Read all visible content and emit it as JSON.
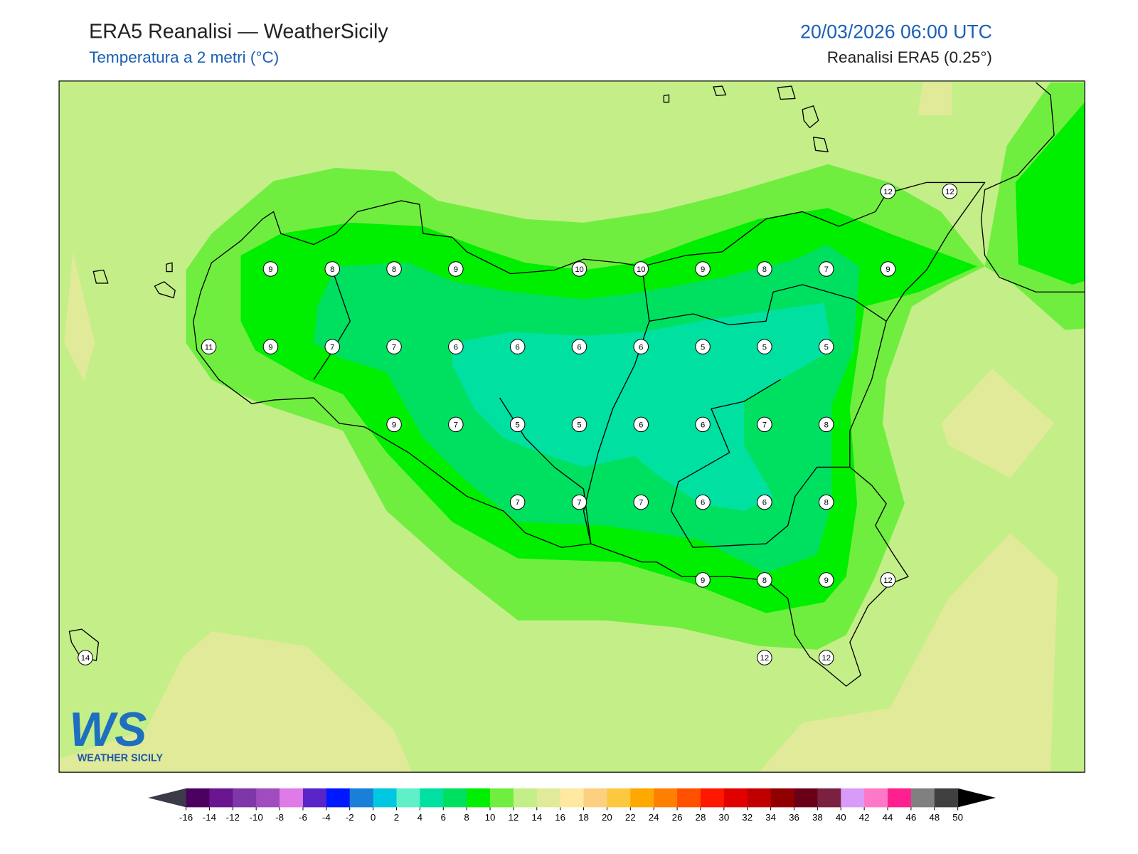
{
  "header": {
    "title": "ERA5 Reanalisi — WeatherSicily",
    "subtitle": "Temperatura a 2 metri (°C)",
    "datetime": "20/03/2026 06:00 UTC",
    "source": "Reanalisi ERA5 (0.25°)"
  },
  "station_grid": [
    [
      null,
      null,
      null,
      null,
      null,
      null,
      null,
      null,
      null,
      null,
      null,
      null,
      null,
      12,
      12
    ],
    [
      null,
      null,
      null,
      9,
      8,
      8,
      9,
      null,
      10,
      10,
      9,
      8,
      7,
      9,
      null
    ],
    [
      null,
      null,
      11,
      9,
      7,
      7,
      6,
      6,
      6,
      6,
      5,
      5,
      5,
      null,
      null
    ],
    [
      null,
      null,
      null,
      null,
      null,
      9,
      7,
      5,
      5,
      6,
      6,
      7,
      8,
      null,
      null
    ],
    [
      null,
      null,
      null,
      null,
      null,
      null,
      null,
      7,
      7,
      7,
      6,
      6,
      8,
      null,
      null
    ],
    [
      null,
      null,
      null,
      null,
      null,
      null,
      null,
      null,
      null,
      null,
      9,
      8,
      9,
      12,
      null
    ],
    [
      14,
      null,
      null,
      null,
      null,
      null,
      null,
      null,
      null,
      null,
      null,
      12,
      12,
      null,
      null
    ]
  ],
  "colorbar": {
    "ticks": [
      -16,
      -14,
      -12,
      -10,
      -8,
      -6,
      -4,
      -2,
      0,
      2,
      4,
      6,
      8,
      10,
      12,
      14,
      16,
      18,
      20,
      22,
      24,
      26,
      28,
      30,
      32,
      34,
      36,
      38,
      40,
      42,
      44,
      46,
      48,
      50
    ],
    "colors": [
      "#4b0060",
      "#6a1590",
      "#7e36a8",
      "#a04cbe",
      "#e07ae8",
      "#5a25c8",
      "#0018ff",
      "#1a7fd8",
      "#00c8e0",
      "#5ff0c8",
      "#00e0a0",
      "#00e060",
      "#00ee00",
      "#70ee40",
      "#c4ee88",
      "#e0ea98",
      "#ffe8a0",
      "#fcd080",
      "#fcc840",
      "#ffa800",
      "#ff8000",
      "#ff5000",
      "#ff1800",
      "#e00000",
      "#c00000",
      "#900000",
      "#6a0018",
      "#7a2040",
      "#d89cf8",
      "#ff78c8",
      "#ff2090",
      "#808080",
      "#404040"
    ],
    "under_color": "#3a3a48",
    "over_color": "#000000"
  },
  "logo": {
    "mark": "WS",
    "text": "WEATHER SICILY"
  }
}
